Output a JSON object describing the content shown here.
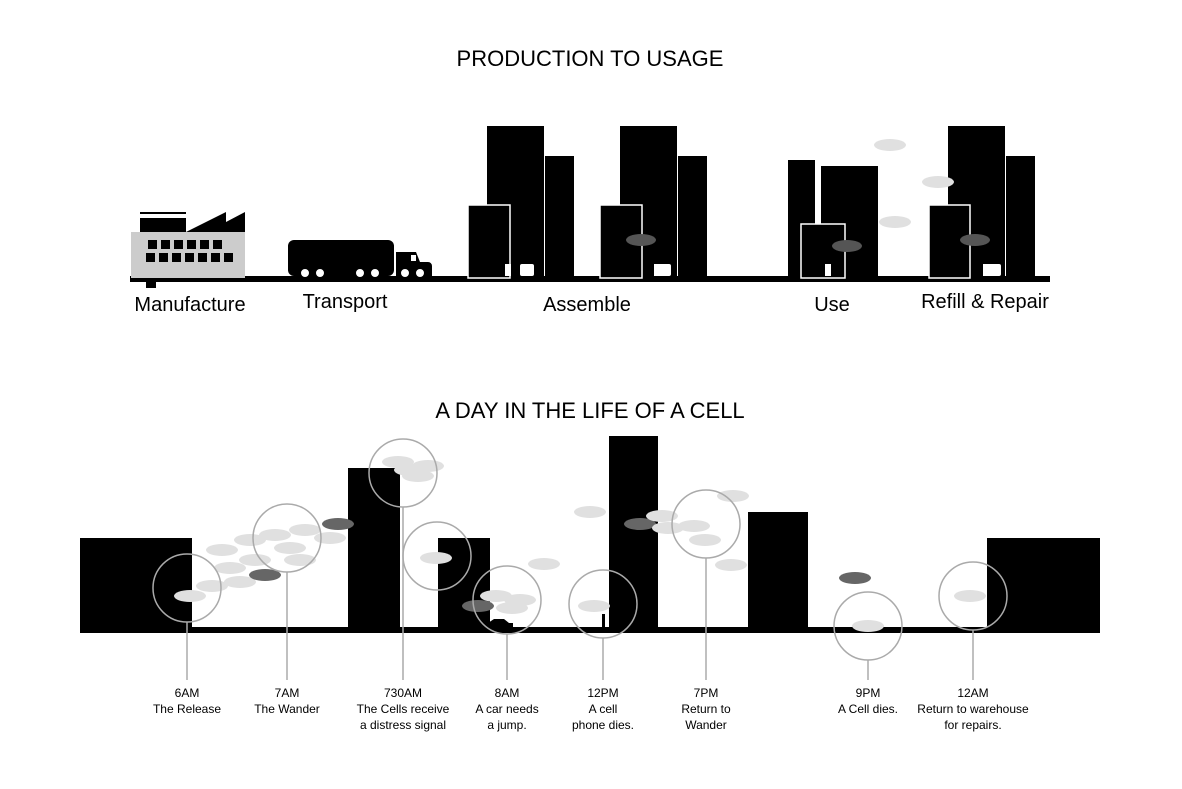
{
  "production": {
    "title": "PRODUCTION TO USAGE",
    "stages": [
      "Manufacture",
      "Transport",
      "Assemble",
      "Use",
      "Refill & Repair"
    ]
  },
  "day": {
    "title": "A DAY IN THE LIFE OF A CELL",
    "events": [
      {
        "time": "6AM",
        "lines": [
          "The Release"
        ]
      },
      {
        "time": "7AM",
        "lines": [
          "The Wander"
        ]
      },
      {
        "time": "730AM",
        "lines": [
          "The Cells receive",
          "a distress signal"
        ]
      },
      {
        "time": "8AM",
        "lines": [
          "A car needs",
          "a jump."
        ]
      },
      {
        "time": "12PM",
        "lines": [
          "A cell",
          "phone dies."
        ]
      },
      {
        "time": "7PM",
        "lines": [
          "Return to",
          "Wander"
        ]
      },
      {
        "time": "9PM",
        "lines": [
          "A Cell dies."
        ]
      },
      {
        "time": "12AM",
        "lines": [
          "Return to warehouse",
          "for repairs."
        ]
      }
    ]
  },
  "colors": {
    "ink": "#000000",
    "factory": "#cccccc",
    "cell": "#e0e0e0",
    "circle": "#aaaaaa"
  }
}
